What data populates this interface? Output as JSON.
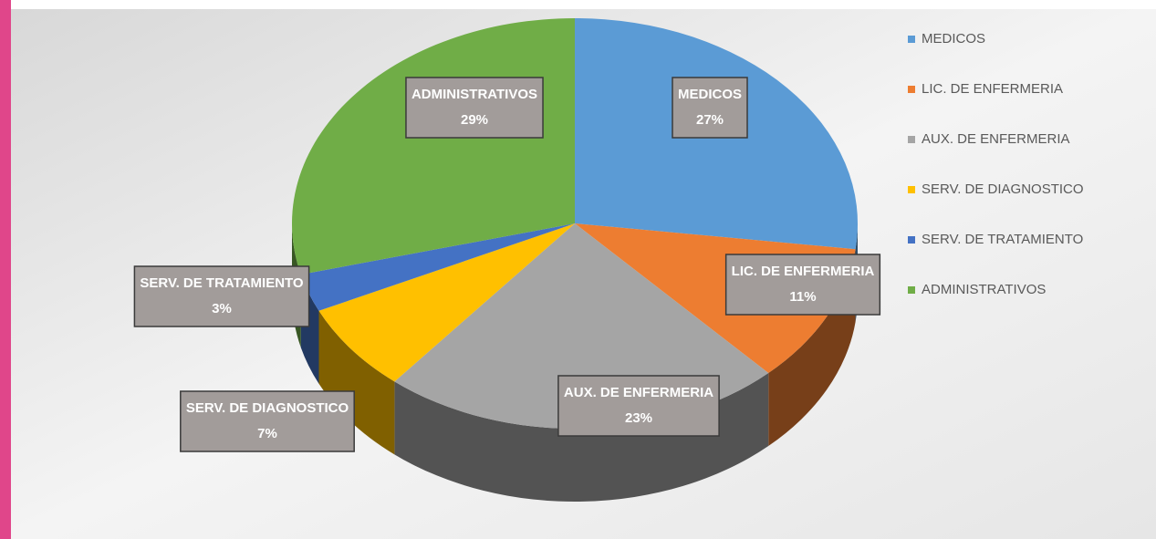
{
  "chart_data": {
    "type": "pie",
    "categories": [
      "MEDICOS",
      "LIC. DE ENFERMERIA",
      "AUX. DE ENFERMERIA",
      "SERV. DE DIAGNOSTICO",
      "SERV. DE TRATAMIENTO",
      "ADMINISTRATIVOS"
    ],
    "values": [
      27,
      11,
      23,
      7,
      3,
      29
    ],
    "value_labels": [
      "27%",
      "11%",
      "23%",
      "7%",
      "3%",
      "29%"
    ],
    "colors": [
      "#5b9bd5",
      "#ed7d31",
      "#a5a5a5",
      "#ffc000",
      "#4472c4",
      "#70ad47"
    ],
    "legend": "right"
  }
}
